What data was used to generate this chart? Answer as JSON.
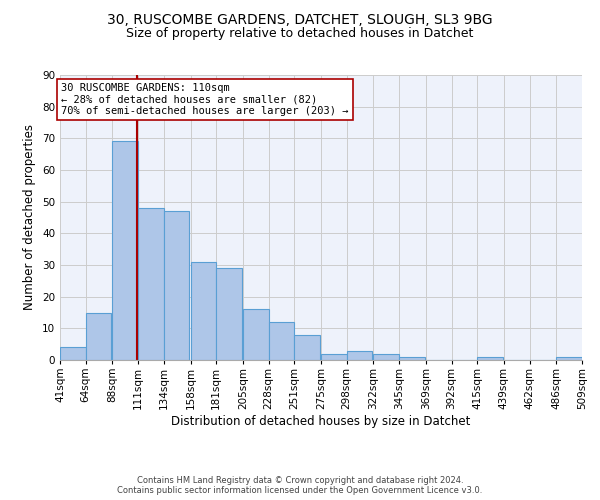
{
  "title_line1": "30, RUSCOMBE GARDENS, DATCHET, SLOUGH, SL3 9BG",
  "title_line2": "Size of property relative to detached houses in Datchet",
  "xlabel": "Distribution of detached houses by size in Datchet",
  "ylabel": "Number of detached properties",
  "bin_labels": [
    "41sqm",
    "64sqm",
    "88sqm",
    "111sqm",
    "134sqm",
    "158sqm",
    "181sqm",
    "205sqm",
    "228sqm",
    "251sqm",
    "275sqm",
    "298sqm",
    "322sqm",
    "345sqm",
    "369sqm",
    "392sqm",
    "415sqm",
    "439sqm",
    "462sqm",
    "486sqm",
    "509sqm"
  ],
  "bin_edges": [
    41,
    64,
    88,
    111,
    134,
    158,
    181,
    205,
    228,
    251,
    275,
    298,
    322,
    345,
    369,
    392,
    415,
    439,
    462,
    486,
    509
  ],
  "bar_values": [
    4,
    15,
    69,
    48,
    47,
    31,
    29,
    16,
    12,
    8,
    2,
    3,
    2,
    1,
    0,
    0,
    1,
    0,
    0,
    1
  ],
  "bar_color": "#aec6e8",
  "bar_edge_color": "#5a9fd4",
  "vline_x": 110,
  "vline_color": "#aa0000",
  "annotation_text": "30 RUSCOMBE GARDENS: 110sqm\n← 28% of detached houses are smaller (82)\n70% of semi-detached houses are larger (203) →",
  "annotation_box_color": "white",
  "annotation_box_edge_color": "#aa0000",
  "ylim": [
    0,
    90
  ],
  "yticks": [
    0,
    10,
    20,
    30,
    40,
    50,
    60,
    70,
    80,
    90
  ],
  "grid_color": "#cccccc",
  "background_color": "#eef2fb",
  "footer_line1": "Contains HM Land Registry data © Crown copyright and database right 2024.",
  "footer_line2": "Contains public sector information licensed under the Open Government Licence v3.0.",
  "title_fontsize": 10,
  "subtitle_fontsize": 9,
  "axis_label_fontsize": 8.5,
  "tick_fontsize": 7.5,
  "annotation_fontsize": 7.5
}
